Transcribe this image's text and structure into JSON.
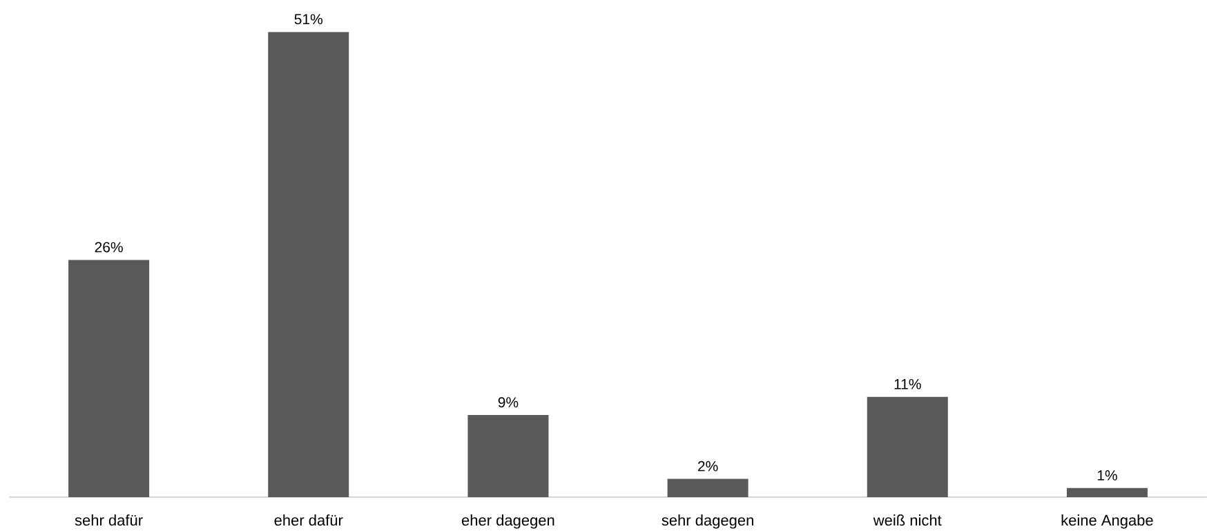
{
  "chart_data": {
    "type": "bar",
    "categories": [
      "sehr dafür",
      "eher dafür",
      "eher dagegen",
      "sehr dagegen",
      "weiß nicht",
      "keine Angabe"
    ],
    "values": [
      26,
      51,
      9,
      2,
      11,
      1
    ],
    "value_labels": [
      "26%",
      "51%",
      "9%",
      "2%",
      "11%",
      "1%"
    ],
    "color": "#595959"
  }
}
